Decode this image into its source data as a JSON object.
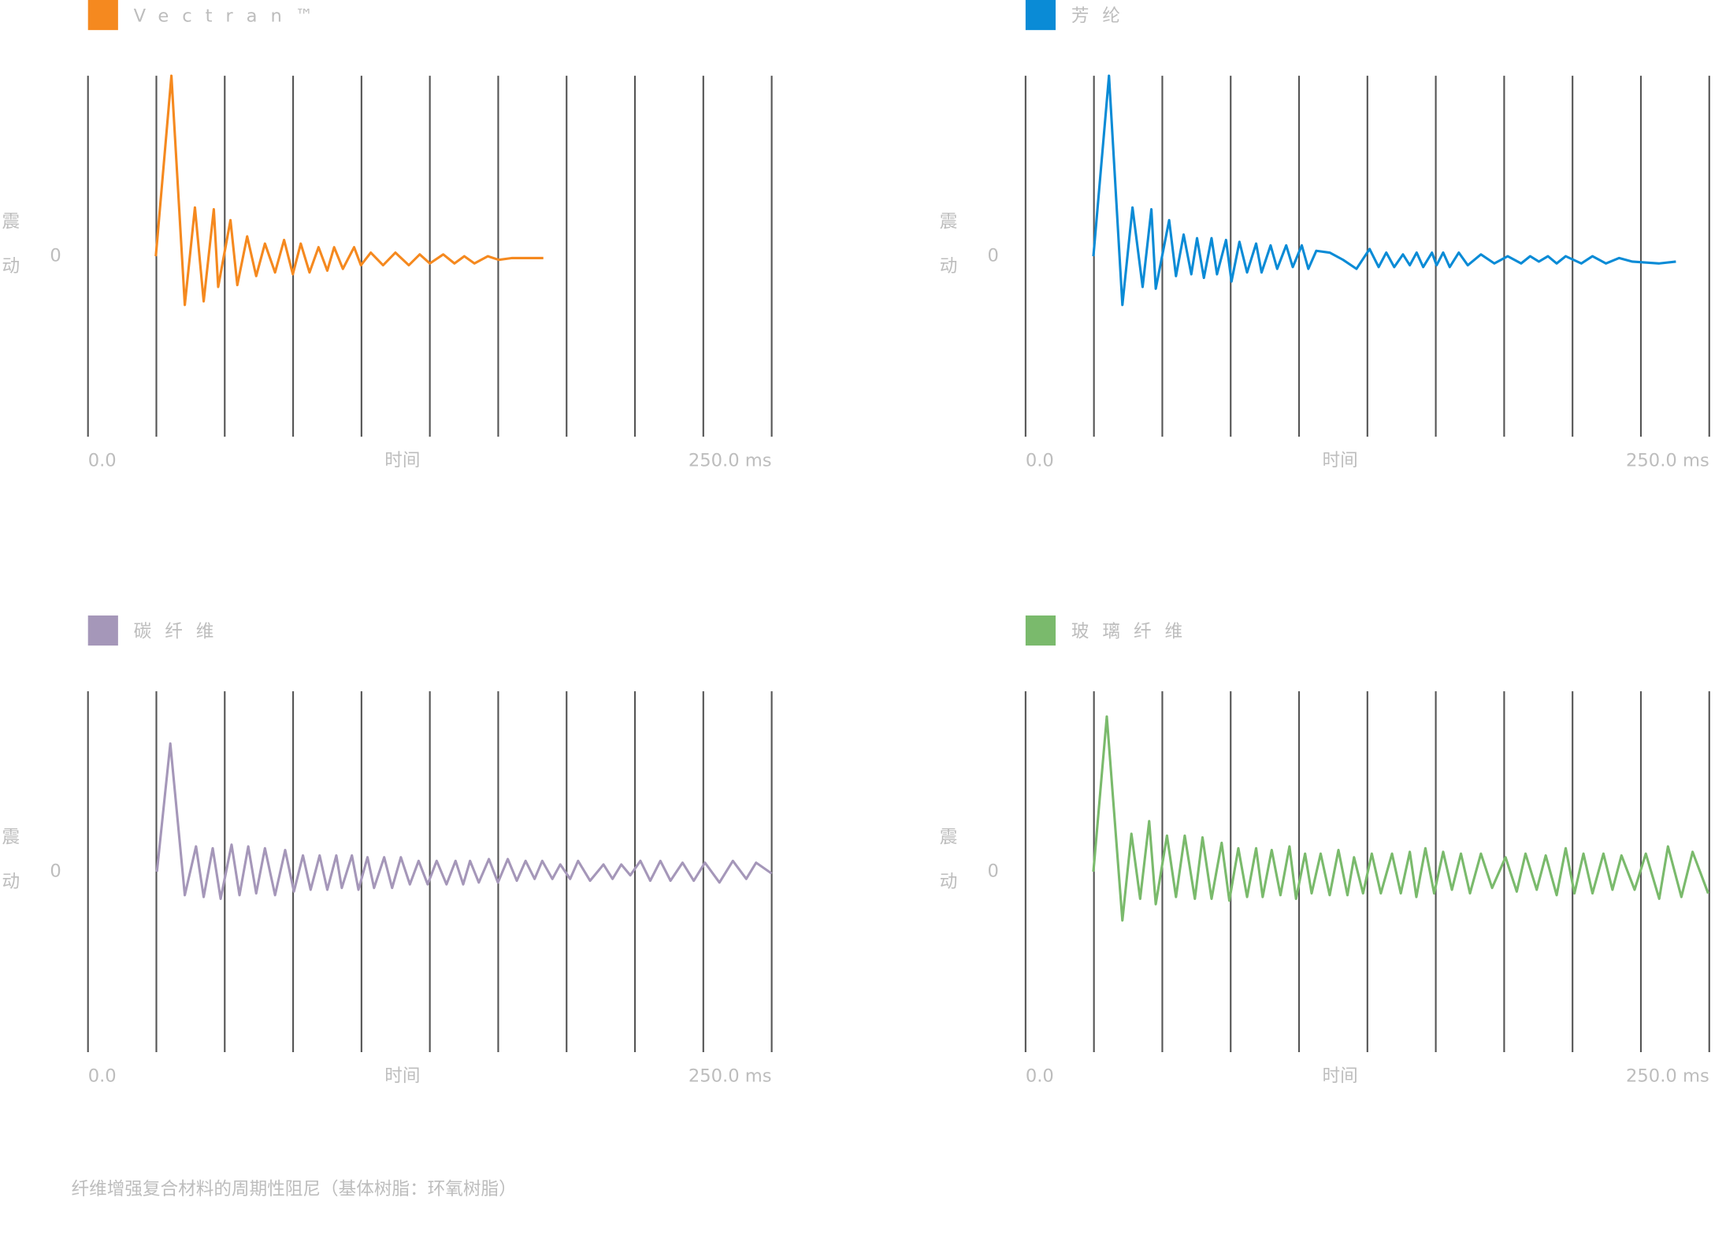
{
  "caption": "纤维增强复合材料的周期性阻尼（基体树脂：环氧树脂）",
  "chart_data": [
    {
      "type": "line",
      "xlabel": "时间",
      "ylabel": "震动",
      "xlim": [
        0,
        250
      ],
      "ylim": [
        -1,
        1
      ],
      "xticks": [
        {
          "value": 0,
          "label": "0.0"
        },
        {
          "value": 250,
          "label": "250.0 ms"
        }
      ],
      "xgrid": [
        0,
        25,
        50,
        75,
        100,
        125,
        150,
        175,
        200,
        225,
        250
      ],
      "yticks": [
        0
      ],
      "grid": true,
      "x": [
        24.8,
        30.5,
        35.4,
        39.1,
        42.3,
        46.0,
        47.6,
        52.1,
        54.6,
        58.2,
        61.5,
        64.7,
        68.4,
        71.7,
        74.9,
        77.8,
        81.0,
        84.3,
        87.5,
        90.0,
        93.2,
        97.3,
        99.8,
        103.4,
        107.9,
        112.4,
        117.3,
        121.3,
        125.0,
        129.9,
        134.0,
        137.6,
        141.3,
        146.2,
        150.2,
        155.1,
        166.5
      ],
      "series": [
        {
          "name": "Vectran™",
          "color": "#f5891f",
          "values": [
            0,
            1.0,
            -0.27,
            0.27,
            -0.25,
            0.26,
            -0.17,
            0.2,
            -0.16,
            0.11,
            -0.11,
            0.07,
            -0.09,
            0.09,
            -0.1,
            0.07,
            -0.09,
            0.05,
            -0.08,
            0.05,
            -0.07,
            0.05,
            -0.05,
            0.02,
            -0.05,
            0.02,
            -0.05,
            0.01,
            -0.04,
            0.01,
            -0.04,
            0,
            -0.04,
            0,
            -0.02,
            -0.01,
            -0.01
          ]
        }
      ]
    },
    {
      "type": "line",
      "xlabel": "时间",
      "ylabel": "震动",
      "xlim": [
        0,
        250
      ],
      "ylim": [
        -1,
        1
      ],
      "xticks": [
        {
          "value": 0,
          "label": "0.0"
        },
        {
          "value": 250,
          "label": "250.0 ms"
        }
      ],
      "xgrid": [
        0,
        25,
        50,
        75,
        100,
        125,
        150,
        175,
        200,
        225,
        250
      ],
      "yticks": [
        0
      ],
      "grid": true,
      "x": [
        24.8,
        30.5,
        35.4,
        39.1,
        42.8,
        46.0,
        47.6,
        52.5,
        55.0,
        57.8,
        60.6,
        62.7,
        65.2,
        68.0,
        70.0,
        73.3,
        75.3,
        78.2,
        81.0,
        84.3,
        86.3,
        89.6,
        92.0,
        95.3,
        97.7,
        101.0,
        103.4,
        106.3,
        111.2,
        116.1,
        121.0,
        125.8,
        129.1,
        131.9,
        134.8,
        138.0,
        140.5,
        143.0,
        145.4,
        148.6,
        150.3,
        152.7,
        155.1,
        158.4,
        161.7,
        166.5,
        171.4,
        176.3,
        181.2,
        184.5,
        187.7,
        191.0,
        194.2,
        197.5,
        203.2,
        207.3,
        212.2,
        217.0,
        221.9,
        231.7,
        237.8
      ],
      "series": [
        {
          "name": "芳纶",
          "color": "#0a8bd6",
          "values": [
            0,
            1.0,
            -0.27,
            0.27,
            -0.17,
            0.26,
            -0.18,
            0.2,
            -0.11,
            0.12,
            -0.1,
            0.1,
            -0.12,
            0.1,
            -0.1,
            0.09,
            -0.14,
            0.08,
            -0.09,
            0.07,
            -0.09,
            0.06,
            -0.07,
            0.06,
            -0.06,
            0.06,
            -0.07,
            0.03,
            0.02,
            -0.02,
            -0.07,
            0.04,
            -0.06,
            0.02,
            -0.06,
            0.01,
            -0.05,
            0.02,
            -0.06,
            0.02,
            -0.05,
            0.02,
            -0.06,
            0.02,
            -0.05,
            0.01,
            -0.04,
            0,
            -0.04,
            0,
            -0.03,
            0,
            -0.04,
            0,
            -0.04,
            0,
            -0.04,
            -0.01,
            -0.03,
            -0.04,
            -0.03
          ]
        }
      ]
    },
    {
      "type": "line",
      "xlabel": "时间",
      "ylabel": "震动",
      "xlim": [
        0,
        250
      ],
      "ylim": [
        -1,
        1
      ],
      "xticks": [
        {
          "value": 0,
          "label": "0.0"
        },
        {
          "value": 250,
          "label": "250.0 ms"
        }
      ],
      "xgrid": [
        0,
        25,
        50,
        75,
        100,
        125,
        150,
        175,
        200,
        225,
        250
      ],
      "yticks": [
        0
      ],
      "grid": true,
      "x": [
        25.2,
        30.1,
        35.4,
        39.5,
        42.3,
        45.6,
        48.5,
        52.5,
        55.4,
        58.6,
        61.5,
        64.7,
        68.4,
        72.1,
        75.3,
        78.6,
        81.4,
        84.7,
        87.5,
        90.8,
        92.8,
        96.5,
        98.9,
        102.2,
        104.6,
        108.3,
        111.2,
        114.4,
        117.7,
        120.9,
        124.2,
        127.5,
        131.1,
        134.4,
        137.2,
        139.7,
        142.9,
        146.6,
        149.9,
        153.5,
        156.8,
        160.0,
        163.3,
        166.1,
        169.8,
        172.7,
        176.3,
        179.2,
        183.6,
        188.5,
        191.8,
        195.0,
        198.3,
        202.0,
        205.6,
        209.3,
        213.0,
        217.4,
        221.5,
        225.6,
        230.9,
        235.8,
        240.7,
        244.3,
        250.0
      ],
      "series": [
        {
          "name": "碳纤维",
          "color": "#a597b9",
          "values": [
            0,
            0.71,
            -0.13,
            0.14,
            -0.14,
            0.13,
            -0.15,
            0.15,
            -0.13,
            0.14,
            -0.12,
            0.13,
            -0.13,
            0.12,
            -0.11,
            0.09,
            -0.1,
            0.09,
            -0.1,
            0.09,
            -0.09,
            0.09,
            -0.1,
            0.08,
            -0.09,
            0.08,
            -0.09,
            0.08,
            -0.07,
            0.06,
            -0.07,
            0.06,
            -0.07,
            0.06,
            -0.07,
            0.06,
            -0.06,
            0.07,
            -0.06,
            0.07,
            -0.05,
            0.06,
            -0.04,
            0.06,
            -0.04,
            0.04,
            -0.04,
            0.06,
            -0.05,
            0.04,
            -0.04,
            0.04,
            -0.02,
            0.06,
            -0.05,
            0.06,
            -0.05,
            0.05,
            -0.05,
            0.05,
            -0.06,
            0.06,
            -0.04,
            0.05,
            -0.01
          ]
        }
      ]
    },
    {
      "type": "line",
      "xlabel": "时间",
      "ylabel": "震动",
      "xlim": [
        0,
        250
      ],
      "ylim": [
        -1,
        1
      ],
      "xticks": [
        {
          "value": 0,
          "label": "0.0"
        },
        {
          "value": 250,
          "label": "250.0 ms"
        }
      ],
      "xgrid": [
        0,
        25,
        50,
        75,
        100,
        125,
        150,
        175,
        200,
        225,
        250
      ],
      "yticks": [
        0
      ],
      "grid": true,
      "x": [
        24.8,
        29.7,
        35.4,
        38.7,
        41.9,
        45.2,
        47.6,
        51.7,
        55.0,
        58.2,
        61.9,
        64.7,
        68.0,
        71.7,
        74.5,
        77.8,
        81.0,
        84.3,
        86.7,
        90.0,
        93.2,
        96.5,
        98.9,
        102.2,
        104.6,
        107.9,
        111.2,
        114.4,
        117.7,
        120.1,
        123.4,
        126.6,
        129.9,
        134.0,
        137.2,
        140.5,
        142.9,
        146.2,
        149.4,
        152.7,
        155.9,
        159.2,
        162.5,
        166.5,
        170.6,
        175.5,
        179.6,
        182.8,
        186.9,
        190.2,
        194.2,
        197.5,
        200.7,
        204.0,
        207.3,
        211.3,
        214.6,
        217.9,
        222.7,
        226.8,
        231.7,
        234.9,
        239.8,
        243.9,
        249.6
      ],
      "series": [
        {
          "name": "玻璃纤维",
          "color": "#7aba6c",
          "values": [
            0,
            0.86,
            -0.27,
            0.21,
            -0.15,
            0.28,
            -0.18,
            0.2,
            -0.14,
            0.2,
            -0.15,
            0.19,
            -0.15,
            0.16,
            -0.16,
            0.13,
            -0.14,
            0.13,
            -0.14,
            0.12,
            -0.13,
            0.14,
            -0.15,
            0.1,
            -0.12,
            0.1,
            -0.13,
            0.12,
            -0.13,
            0.08,
            -0.12,
            0.1,
            -0.12,
            0.1,
            -0.12,
            0.11,
            -0.14,
            0.13,
            -0.12,
            0.11,
            -0.1,
            0.1,
            -0.12,
            0.1,
            -0.09,
            0.08,
            -0.11,
            0.1,
            -0.1,
            0.09,
            -0.13,
            0.13,
            -0.12,
            0.1,
            -0.12,
            0.1,
            -0.1,
            0.09,
            -0.1,
            0.1,
            -0.15,
            0.14,
            -0.14,
            0.11,
            -0.12
          ]
        }
      ]
    }
  ]
}
